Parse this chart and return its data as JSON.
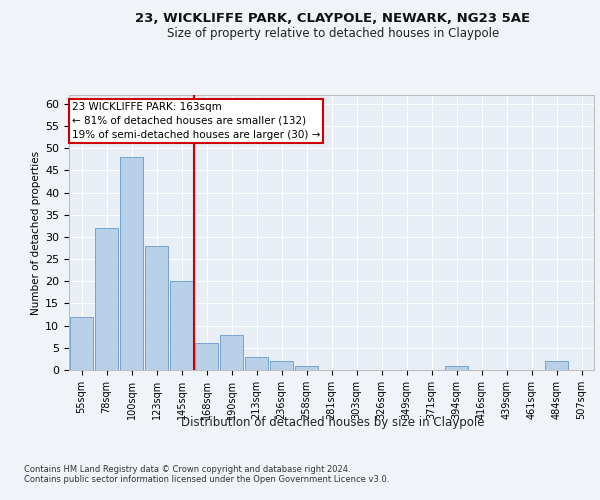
{
  "title1": "23, WICKLIFFE PARK, CLAYPOLE, NEWARK, NG23 5AE",
  "title2": "Size of property relative to detached houses in Claypole",
  "xlabel": "Distribution of detached houses by size in Claypole",
  "ylabel": "Number of detached properties",
  "bin_labels": [
    "55sqm",
    "78sqm",
    "100sqm",
    "123sqm",
    "145sqm",
    "168sqm",
    "190sqm",
    "213sqm",
    "236sqm",
    "258sqm",
    "281sqm",
    "303sqm",
    "326sqm",
    "349sqm",
    "371sqm",
    "394sqm",
    "416sqm",
    "439sqm",
    "461sqm",
    "484sqm",
    "507sqm"
  ],
  "bar_heights": [
    12,
    32,
    48,
    28,
    20,
    6,
    8,
    3,
    2,
    1,
    0,
    0,
    0,
    0,
    0,
    1,
    0,
    0,
    0,
    2,
    0
  ],
  "bar_color": "#b8d0e8",
  "bar_edge_color": "#6699cc",
  "vline_color": "#cc0000",
  "annotation_text": "23 WICKLIFFE PARK: 163sqm\n← 81% of detached houses are smaller (132)\n19% of semi-detached houses are larger (30) →",
  "annotation_box_color": "#ffffff",
  "annotation_box_edge_color": "#cc0000",
  "ylim": [
    0,
    62
  ],
  "yticks": [
    0,
    5,
    10,
    15,
    20,
    25,
    30,
    35,
    40,
    45,
    50,
    55,
    60
  ],
  "footer_text": "Contains HM Land Registry data © Crown copyright and database right 2024.\nContains public sector information licensed under the Open Government Licence v3.0.",
  "bg_color": "#f0f4f8",
  "plot_bg_color": "#e8eef5",
  "title1_fontsize": 9.5,
  "title2_fontsize": 8.5
}
